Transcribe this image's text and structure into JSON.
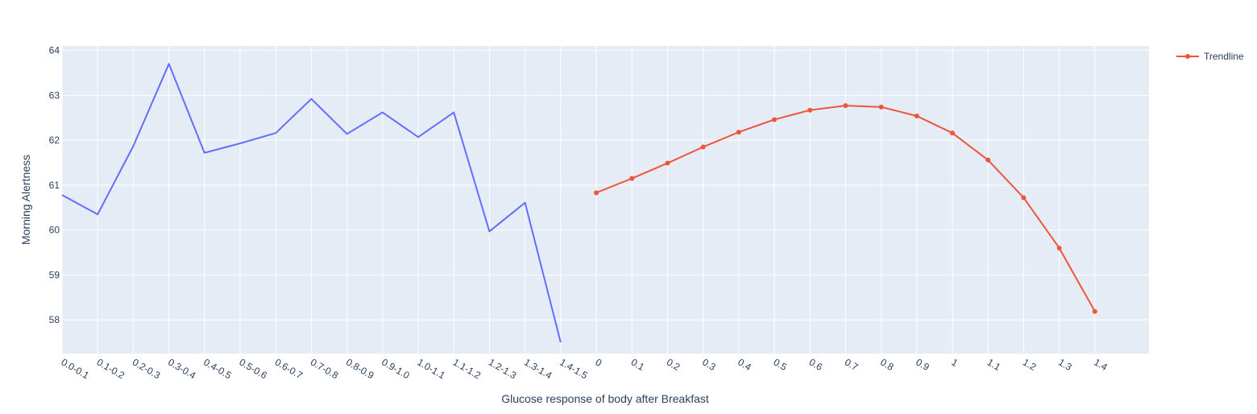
{
  "chart_data": {
    "type": "line",
    "xlabel": "Glucose response of body after Breakfast",
    "ylabel": "Morning Alertness",
    "ylim": [
      57.25,
      64.1
    ],
    "y_ticks": [
      58,
      59,
      60,
      61,
      62,
      63,
      64
    ],
    "grid": true,
    "legend_position": "top-right",
    "categories": [
      "0.0-0.1",
      "0.1-0.2",
      "0.2-0.3",
      "0.3-0.4",
      "0.4-0.5",
      "0.5-0.6",
      "0.6-0.7",
      "0.7-0.8",
      "0.8-0.9",
      "0.9-1.0",
      "1.0-1.1",
      "1.1-1.2",
      "1.2-1.3",
      "1.3-1.4",
      "1.4-1.5",
      "0",
      "0.1",
      "0.2",
      "0.3",
      "0.4",
      "0.5",
      "0.6",
      "0.7",
      "0.8",
      "0.9",
      "1",
      "1.1",
      "1.2",
      "1.3",
      "1.4"
    ],
    "series": [
      {
        "name": "",
        "color": "#636efa",
        "mode": "lines",
        "x": [
          "0.0-0.1",
          "0.1-0.2",
          "0.2-0.3",
          "0.3-0.4",
          "0.4-0.5",
          "0.5-0.6",
          "0.6-0.7",
          "0.7-0.8",
          "0.8-0.9",
          "0.9-1.0",
          "1.0-1.1",
          "1.1-1.2",
          "1.2-1.3",
          "1.3-1.4",
          "1.4-1.5"
        ],
        "values": [
          60.78,
          60.35,
          61.87,
          63.7,
          61.72,
          61.93,
          62.16,
          62.92,
          62.14,
          62.62,
          62.07,
          62.62,
          59.97,
          60.61,
          57.5
        ]
      },
      {
        "name": "Trendline",
        "color": "#ef553b",
        "mode": "lines+markers",
        "x": [
          "0",
          "0.1",
          "0.2",
          "0.3",
          "0.4",
          "0.5",
          "0.6",
          "0.7",
          "0.8",
          "0.9",
          "1",
          "1.1",
          "1.2",
          "1.3",
          "1.4"
        ],
        "values": [
          60.83,
          61.15,
          61.49,
          61.85,
          62.18,
          62.46,
          62.67,
          62.77,
          62.74,
          62.54,
          62.16,
          61.56,
          60.72,
          59.6,
          58.19
        ]
      }
    ]
  }
}
